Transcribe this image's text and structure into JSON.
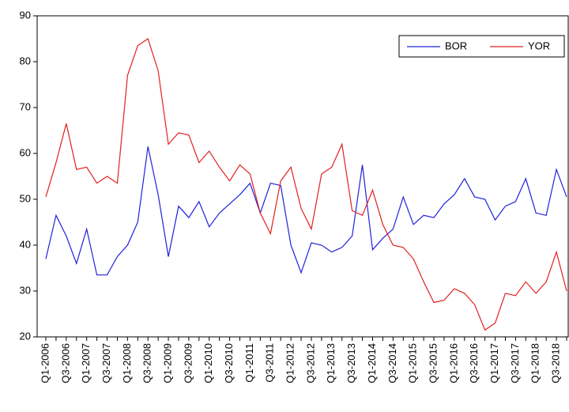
{
  "chart_data": {
    "type": "line",
    "categories": [
      "Q1-2006",
      null,
      "Q3-2006",
      null,
      "Q1-2007",
      null,
      "Q3-2007",
      null,
      "Q1-2008",
      null,
      "Q3-2008",
      null,
      "Q1-2009",
      null,
      "Q3-2009",
      null,
      "Q1-2010",
      null,
      "Q3-2010",
      null,
      "Q1-2011",
      null,
      "Q3-2011",
      null,
      "Q1-2012",
      null,
      "Q3-2012",
      null,
      "Q1-2013",
      null,
      "Q3-2013",
      null,
      "Q1-2014",
      null,
      "Q3-2014",
      null,
      "Q1-2015",
      null,
      "Q3-2015",
      null,
      "Q1-2016",
      null,
      "Q3-2016",
      null,
      "Q1-2017",
      null,
      "Q3-2017",
      null,
      "Q1-2018",
      null,
      "Q3-2018",
      null
    ],
    "series": [
      {
        "name": "BOR",
        "color": "#2020e0",
        "values": [
          37,
          46.5,
          42,
          36,
          43.5,
          33.5,
          33.5,
          37.5,
          40,
          45,
          61.5,
          51,
          37.5,
          48.5,
          46,
          49.5,
          44,
          47,
          49,
          51,
          53.5,
          47,
          53.5,
          53,
          40,
          34,
          40.5,
          40,
          38.5,
          39.5,
          42,
          57.5,
          39,
          41.5,
          43.5,
          50.5,
          44.5,
          46.5,
          46,
          49,
          51,
          54.5,
          50.5,
          50,
          45.5,
          48.5,
          49.5,
          54.5,
          47,
          46.5,
          56.5,
          50.5
        ]
      },
      {
        "name": "YOR",
        "color": "#e02020",
        "values": [
          50.5,
          58,
          66.5,
          56.5,
          57,
          53.5,
          55,
          53.5,
          77,
          83.5,
          85,
          78,
          62,
          64.5,
          64,
          58,
          60.5,
          57,
          54,
          57.5,
          55.5,
          47,
          42.5,
          54,
          57,
          48,
          43.5,
          55.5,
          57,
          62,
          47.5,
          46.5,
          52,
          44.5,
          40,
          39.5,
          37,
          32,
          27.5,
          28,
          30.5,
          29.5,
          27,
          21.5,
          23,
          29.5,
          29,
          32,
          29.5,
          32,
          38.5,
          30
        ]
      }
    ],
    "ylim": [
      20,
      90
    ],
    "yticks": [
      20,
      30,
      40,
      50,
      60,
      70,
      80,
      90
    ],
    "legend": "top-right"
  }
}
